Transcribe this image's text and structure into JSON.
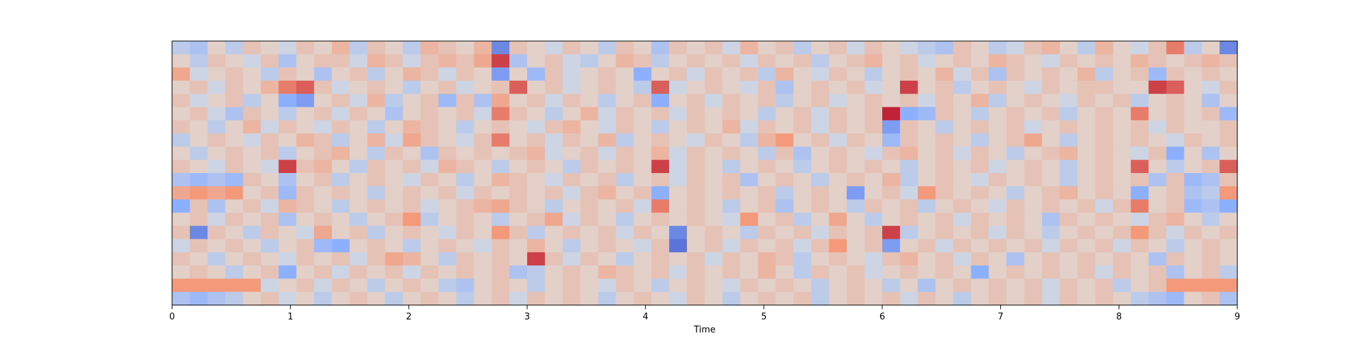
{
  "chart_data": {
    "type": "heatmap",
    "title": "",
    "xlabel": "Time",
    "ylabel": "",
    "xlim": [
      0,
      9
    ],
    "x_ticks": [
      0,
      1,
      2,
      3,
      4,
      5,
      6,
      7,
      8,
      9
    ],
    "x_tick_labels": [
      "0",
      "1",
      "2",
      "3",
      "4",
      "5",
      "6",
      "7",
      "8",
      "9"
    ],
    "y_ticks_visible": false,
    "colormap": "coolwarm",
    "color_range": [
      -1,
      1
    ],
    "grid": false,
    "legend": "none",
    "n_rows": 20,
    "n_cols": 60,
    "row_order": "top-to-bottom",
    "approximate_note": "matrix values approximate the visible color pattern",
    "matrix": [
      [
        -0.2,
        -0.3,
        0.1,
        -0.2,
        0.2,
        0.1,
        -0.1,
        0.2,
        0.1,
        0.3,
        -0.2,
        0.2,
        0.1,
        -0.2,
        0.3,
        0.2,
        0.1,
        0.3,
        -0.7,
        0.2,
        0.1,
        -0.1,
        0.2,
        0.1,
        -0.2,
        0.2,
        0.1,
        -0.3,
        0.2,
        0.1,
        0.2,
        -0.1,
        0.3,
        0.1,
        0.2,
        -0.2,
        0.1,
        0.2,
        -0.1,
        0.2,
        0.1,
        -0.1,
        -0.2,
        -0.3,
        0.2,
        0.1,
        -0.2,
        -0.1,
        0.2,
        0.3,
        0.1,
        -0.2,
        0.3,
        0.1,
        -0.1,
        0.2,
        0.6,
        -0.2,
        0.1,
        -0.7
      ],
      [
        0.1,
        -0.2,
        0.2,
        0.1,
        -0.1,
        0.2,
        -0.3,
        0.1,
        0.2,
        0.2,
        -0.1,
        0.3,
        0.2,
        -0.1,
        0.2,
        0.3,
        0.2,
        0.4,
        0.8,
        -0.3,
        0.1,
        0.2,
        -0.1,
        -0.2,
        0.1,
        0.3,
        0.2,
        -0.2,
        0.1,
        0.2,
        0.1,
        0.2,
        -0.1,
        0.2,
        0.1,
        0.2,
        -0.2,
        0.1,
        0.2,
        0.3,
        0.1,
        0.2,
        -0.1,
        0.1,
        0.2,
        0.1,
        0.3,
        0.2,
        0.1,
        -0.1,
        0.2,
        0.1,
        0.2,
        0.1,
        0.3,
        0.2,
        0.1,
        0.2,
        0.3,
        0.2
      ],
      [
        0.4,
        -0.1,
        0.1,
        0.2,
        0.1,
        -0.2,
        0.2,
        0.1,
        -0.3,
        0.1,
        0.2,
        -0.2,
        0.1,
        0.3,
        0.2,
        -0.1,
        0.2,
        0.1,
        -0.6,
        0.1,
        -0.4,
        0.2,
        -0.1,
        0.1,
        0.2,
        0.1,
        -0.5,
        0.1,
        0.2,
        -0.1,
        0.2,
        0.1,
        0.2,
        -0.2,
        0.3,
        0.1,
        -0.1,
        0.2,
        0.1,
        -0.2,
        0.1,
        0.2,
        0.1,
        0.3,
        -0.1,
        0.2,
        -0.3,
        0.2,
        0.1,
        0.2,
        0.1,
        0.3,
        -0.2,
        0.1,
        0.2,
        -0.4,
        0.2,
        0.1,
        0.2,
        0.1
      ],
      [
        0.1,
        0.2,
        -0.1,
        0.2,
        0.1,
        0.3,
        0.6,
        0.7,
        0.2,
        -0.1,
        0.1,
        0.2,
        0.1,
        -0.2,
        0.1,
        0.2,
        -0.1,
        0.1,
        0.2,
        0.7,
        0.1,
        0.2,
        -0.1,
        0.1,
        0.2,
        0.1,
        -0.2,
        0.7,
        -0.1,
        0.1,
        0.2,
        0.1,
        -0.1,
        0.2,
        -0.3,
        0.1,
        0.2,
        0.1,
        0.2,
        -0.1,
        0.1,
        0.8,
        0.1,
        0.2,
        -0.2,
        0.1,
        0.2,
        0.1,
        -0.1,
        0.2,
        0.1,
        0.2,
        0.2,
        0.1,
        0.1,
        0.8,
        0.7,
        0.1,
        -0.1,
        0.2
      ],
      [
        0.2,
        -0.1,
        0.1,
        0.2,
        -0.2,
        0.1,
        -0.5,
        -0.6,
        0.1,
        0.2,
        -0.1,
        0.3,
        -0.2,
        0.1,
        0.2,
        -0.4,
        0.2,
        -0.3,
        0.4,
        0.1,
        0.2,
        -0.1,
        0.2,
        0.1,
        -0.2,
        0.1,
        0.2,
        -0.5,
        0.1,
        0.2,
        -0.1,
        0.2,
        0.1,
        0.2,
        -0.2,
        0.1,
        0.2,
        -0.1,
        0.1,
        0.2,
        0.1,
        0.2,
        -0.1,
        0.2,
        0.1,
        0.3,
        -0.2,
        0.1,
        0.2,
        0.1,
        -0.1,
        0.2,
        0.1,
        0.2,
        -0.2,
        0.1,
        0.2,
        0.1,
        -0.3,
        0.1
      ],
      [
        0.1,
        0.2,
        -0.1,
        -0.3,
        0.2,
        0.1,
        -0.2,
        0.1,
        0.2,
        -0.1,
        0.2,
        0.1,
        -0.3,
        0.1,
        0.2,
        0.1,
        0.2,
        -0.1,
        0.6,
        0.2,
        0.1,
        -0.2,
        0.1,
        0.3,
        -0.1,
        0.2,
        0.1,
        0.2,
        -0.1,
        0.2,
        0.1,
        0.2,
        0.1,
        -0.2,
        0.1,
        0.2,
        -0.1,
        0.2,
        0.1,
        0.2,
        0.9,
        -0.5,
        -0.4,
        0.2,
        0.1,
        -0.2,
        0.1,
        0.2,
        0.1,
        0.2,
        -0.2,
        0.1,
        0.2,
        0.1,
        0.6,
        0.1,
        0.2,
        0.1,
        0.2,
        -0.4
      ],
      [
        0.2,
        0.1,
        -0.2,
        0.1,
        0.3,
        -0.1,
        0.2,
        0.1,
        -0.1,
        0.2,
        0.1,
        -0.2,
        0.1,
        0.3,
        0.2,
        0.1,
        -0.2,
        0.1,
        0.2,
        0.1,
        -0.1,
        0.2,
        0.3,
        0.1,
        -0.1,
        0.2,
        0.1,
        -0.2,
        0.1,
        0.2,
        0.1,
        0.3,
        -0.1,
        0.2,
        0.1,
        0.2,
        -0.1,
        0.2,
        0.1,
        0.2,
        -0.6,
        0.2,
        0.1,
        -0.2,
        0.1,
        0.2,
        0.1,
        0.2,
        -0.1,
        0.1,
        0.2,
        0.1,
        0.2,
        0.1,
        0.2,
        -0.1,
        0.2,
        0.1,
        0.1,
        0.2
      ],
      [
        -0.2,
        0.1,
        0.2,
        0.1,
        -0.1,
        0.2,
        0.1,
        0.3,
        0.2,
        -0.2,
        0.1,
        0.3,
        -0.1,
        0.4,
        0.2,
        0.1,
        -0.1,
        0.2,
        0.6,
        0.1,
        0.2,
        -0.1,
        0.2,
        0.1,
        0.3,
        -0.2,
        0.1,
        0.2,
        0.1,
        -0.1,
        0.2,
        0.1,
        -0.2,
        0.3,
        0.5,
        0.1,
        0.2,
        -0.1,
        0.2,
        0.1,
        -0.4,
        0.2,
        0.1,
        0.2,
        0.1,
        -0.2,
        0.1,
        0.2,
        0.4,
        0.1,
        -0.2,
        0.1,
        0.2,
        0.1,
        0.2,
        0.1,
        -0.1,
        0.2,
        0.1,
        0.2
      ],
      [
        0.1,
        -0.2,
        0.1,
        0.2,
        0.1,
        0.2,
        -0.2,
        0.1,
        0.2,
        0.3,
        0.1,
        -0.2,
        0.2,
        0.1,
        -0.3,
        0.2,
        0.1,
        0.2,
        0.1,
        0.2,
        0.3,
        -0.1,
        0.1,
        0.2,
        -0.1,
        0.2,
        0.1,
        0.3,
        -0.1,
        0.2,
        0.1,
        0.2,
        0.1,
        -0.2,
        0.2,
        -0.3,
        0.1,
        0.2,
        0.1,
        -0.1,
        0.2,
        0.3,
        0.1,
        0.2,
        -0.1,
        0.2,
        0.1,
        -0.2,
        0.1,
        0.2,
        0.3,
        0.1,
        0.2,
        0.1,
        -0.1,
        0.2,
        -0.5,
        0.1,
        -0.3,
        0.1
      ],
      [
        0.2,
        0.1,
        -0.1,
        0.2,
        0.1,
        -0.1,
        0.8,
        0.2,
        0.3,
        0.1,
        -0.2,
        0.2,
        0.1,
        0.2,
        -0.1,
        0.3,
        0.2,
        0.1,
        -0.2,
        0.1,
        0.2,
        0.1,
        -0.2,
        0.2,
        0.1,
        0.2,
        0.1,
        0.8,
        -0.1,
        0.2,
        0.1,
        -0.2,
        0.1,
        0.2,
        0.1,
        -0.2,
        0.1,
        0.2,
        0.1,
        0.2,
        0.1,
        -0.2,
        0.1,
        0.2,
        0.1,
        0.2,
        -0.1,
        0.1,
        0.2,
        0.1,
        -0.2,
        0.1,
        0.2,
        0.1,
        0.7,
        0.1,
        -0.2,
        0.1,
        0.2,
        0.7
      ],
      [
        -0.3,
        -0.4,
        -0.3,
        -0.4,
        0.2,
        0.1,
        -0.3,
        0.1,
        0.2,
        -0.2,
        0.1,
        0.2,
        0.1,
        -0.1,
        0.2,
        0.1,
        -0.2,
        0.1,
        0.3,
        0.2,
        0.1,
        -0.1,
        0.2,
        0.1,
        0.2,
        -0.2,
        0.1,
        0.2,
        -0.1,
        0.2,
        0.1,
        0.2,
        -0.3,
        0.1,
        0.2,
        0.1,
        -0.2,
        0.1,
        0.2,
        0.1,
        0.3,
        -0.2,
        0.1,
        0.2,
        0.1,
        -0.1,
        0.2,
        0.1,
        0.2,
        0.1,
        -0.2,
        0.1,
        0.2,
        0.1,
        0.2,
        -0.3,
        0.2,
        -0.4,
        -0.3,
        0.2
      ],
      [
        0.4,
        0.5,
        0.4,
        0.5,
        0.1,
        0.2,
        -0.4,
        0.2,
        0.1,
        0.2,
        0.1,
        -0.2,
        0.1,
        0.2,
        0.1,
        0.2,
        -0.1,
        0.2,
        0.1,
        0.2,
        0.1,
        0.2,
        -0.1,
        0.2,
        0.3,
        0.1,
        0.2,
        -0.5,
        0.1,
        0.2,
        0.1,
        0.2,
        0.1,
        0.2,
        -0.2,
        0.1,
        0.2,
        0.1,
        -0.6,
        0.1,
        0.2,
        -0.1,
        0.5,
        0.2,
        0.1,
        0.2,
        0.1,
        -0.2,
        0.1,
        0.2,
        0.3,
        0.1,
        0.2,
        0.1,
        -0.5,
        0.1,
        0.2,
        -0.3,
        -0.2,
        0.5
      ],
      [
        -0.5,
        0.2,
        -0.3,
        0.1,
        0.2,
        -0.1,
        0.3,
        0.2,
        0.1,
        -0.2,
        0.1,
        0.2,
        0.1,
        0.2,
        -0.1,
        0.1,
        0.2,
        0.3,
        0.4,
        0.2,
        0.1,
        -0.2,
        0.1,
        0.2,
        0.1,
        0.2,
        -0.1,
        0.6,
        0.1,
        0.2,
        0.1,
        -0.2,
        0.1,
        0.2,
        -0.3,
        0.1,
        0.2,
        0.1,
        -0.2,
        0.2,
        0.1,
        0.2,
        -0.2,
        0.1,
        0.2,
        0.1,
        -0.1,
        0.2,
        0.1,
        0.2,
        0.1,
        0.2,
        -0.1,
        0.2,
        0.6,
        0.1,
        0.2,
        -0.4,
        -0.3,
        -0.5
      ],
      [
        0.1,
        0.2,
        -0.1,
        0.2,
        0.1,
        0.2,
        -0.3,
        0.1,
        0.2,
        0.1,
        -0.2,
        0.1,
        0.2,
        0.5,
        -0.2,
        0.1,
        0.2,
        0.1,
        -0.2,
        0.1,
        0.2,
        0.4,
        -0.1,
        0.2,
        0.1,
        -0.2,
        0.1,
        0.2,
        0.1,
        0.2,
        0.1,
        -0.1,
        0.5,
        0.1,
        0.2,
        -0.2,
        0.1,
        0.4,
        0.1,
        -0.2,
        0.1,
        0.2,
        0.1,
        0.2,
        -0.1,
        0.2,
        0.1,
        0.2,
        0.1,
        -0.3,
        0.2,
        0.1,
        0.2,
        0.1,
        -0.1,
        0.2,
        0.3,
        0.1,
        -0.2,
        0.1
      ],
      [
        0.2,
        -0.7,
        0.2,
        0.1,
        -0.2,
        0.2,
        0.1,
        -0.1,
        0.4,
        0.1,
        0.2,
        -0.2,
        0.1,
        0.2,
        0.1,
        -0.1,
        0.2,
        0.1,
        0.5,
        0.2,
        -0.2,
        0.1,
        0.2,
        0.1,
        0.2,
        -0.1,
        0.2,
        0.1,
        -0.7,
        0.1,
        0.2,
        0.1,
        -0.2,
        0.2,
        0.1,
        0.2,
        -0.1,
        0.2,
        0.1,
        0.2,
        0.8,
        -0.2,
        0.1,
        0.2,
        0.1,
        0.2,
        -0.1,
        0.2,
        0.1,
        -0.2,
        0.1,
        0.2,
        0.1,
        0.2,
        0.5,
        0.2,
        -0.1,
        0.2,
        0.1,
        0.2
      ],
      [
        -0.1,
        0.2,
        0.1,
        0.2,
        0.1,
        -0.2,
        0.1,
        0.2,
        -0.4,
        -0.5,
        0.1,
        0.2,
        0.1,
        -0.2,
        0.1,
        0.2,
        0.1,
        -0.1,
        0.2,
        0.1,
        0.3,
        0.1,
        -0.2,
        0.1,
        0.2,
        0.1,
        -0.1,
        0.2,
        -0.8,
        0.1,
        0.2,
        -0.1,
        0.2,
        0.1,
        0.2,
        -0.1,
        0.2,
        0.5,
        0.1,
        0.2,
        -0.6,
        0.1,
        0.2,
        -0.1,
        0.2,
        0.1,
        0.2,
        0.1,
        0.2,
        -0.1,
        0.2,
        0.1,
        0.2,
        -0.1,
        0.2,
        0.1,
        -0.2,
        0.1,
        0.2,
        0.1
      ],
      [
        0.2,
        0.1,
        -0.2,
        0.1,
        0.2,
        0.1,
        -0.1,
        0.2,
        0.1,
        0.2,
        -0.1,
        0.2,
        0.4,
        0.3,
        0.1,
        -0.2,
        0.2,
        0.1,
        0.2,
        0.1,
        0.8,
        0.2,
        -0.1,
        0.2,
        0.1,
        -0.2,
        0.1,
        0.2,
        0.1,
        0.2,
        -0.1,
        0.2,
        0.1,
        0.3,
        0.2,
        -0.2,
        0.1,
        0.2,
        0.1,
        -0.1,
        0.2,
        0.3,
        0.1,
        0.2,
        -0.1,
        0.2,
        0.1,
        -0.3,
        0.1,
        0.2,
        0.1,
        0.2,
        0.1,
        0.2,
        0.1,
        -0.3,
        0.2,
        0.1,
        0.2,
        0.1
      ],
      [
        0.1,
        0.2,
        0.1,
        -0.2,
        0.1,
        0.2,
        -0.5,
        0.1,
        0.2,
        -0.1,
        0.2,
        0.1,
        0.2,
        -0.1,
        0.2,
        0.1,
        0.2,
        0.1,
        0.2,
        -0.3,
        -0.2,
        0.1,
        0.2,
        0.1,
        0.3,
        0.2,
        0.1,
        0.2,
        -0.1,
        0.2,
        0.1,
        0.2,
        0.1,
        0.3,
        0.1,
        -0.2,
        0.2,
        0.1,
        0.2,
        -0.1,
        0.1,
        0.2,
        0.1,
        0.2,
        0.1,
        -0.5,
        0.1,
        0.2,
        0.1,
        0.2,
        0.1,
        0.2,
        -0.1,
        0.2,
        0.1,
        0.2,
        -0.3,
        0.1,
        0.2,
        -0.2
      ],
      [
        0.5,
        0.5,
        0.5,
        0.5,
        0.5,
        -0.1,
        0.1,
        0.2,
        -0.1,
        0.2,
        0.1,
        -0.2,
        0.1,
        0.2,
        0.1,
        -0.2,
        -0.3,
        0.1,
        0.2,
        0.1,
        -0.2,
        0.1,
        0.2,
        0.1,
        -0.1,
        0.2,
        0.1,
        -0.2,
        0.1,
        0.2,
        0.1,
        -0.1,
        0.2,
        0.1,
        0.2,
        0.1,
        -0.2,
        0.1,
        0.2,
        0.1,
        -0.2,
        0.1,
        -0.3,
        0.1,
        0.2,
        0.1,
        0.2,
        0.1,
        0.2,
        -0.1,
        0.2,
        0.1,
        0.2,
        -0.2,
        0.1,
        0.2,
        0.5,
        0.5,
        0.5,
        0.5
      ],
      [
        -0.3,
        -0.4,
        -0.3,
        -0.2,
        0.1,
        0.2,
        -0.1,
        0.1,
        -0.2,
        0.1,
        0.2,
        0.1,
        -0.2,
        0.1,
        0.2,
        0.1,
        -0.2,
        0.1,
        0.2,
        -0.1,
        0.2,
        0.1,
        0.2,
        0.1,
        -0.2,
        0.1,
        0.2,
        0.1,
        -0.1,
        0.2,
        0.1,
        -0.2,
        0.1,
        0.2,
        0.1,
        0.2,
        -0.2,
        0.1,
        0.2,
        0.1,
        0.2,
        -0.1,
        0.2,
        0.1,
        -0.2,
        0.1,
        0.2,
        0.1,
        0.2,
        -0.1,
        0.2,
        0.1,
        0.2,
        0.1,
        -0.2,
        -0.3,
        -0.4,
        0.1,
        0.2,
        -0.3
      ]
    ]
  }
}
